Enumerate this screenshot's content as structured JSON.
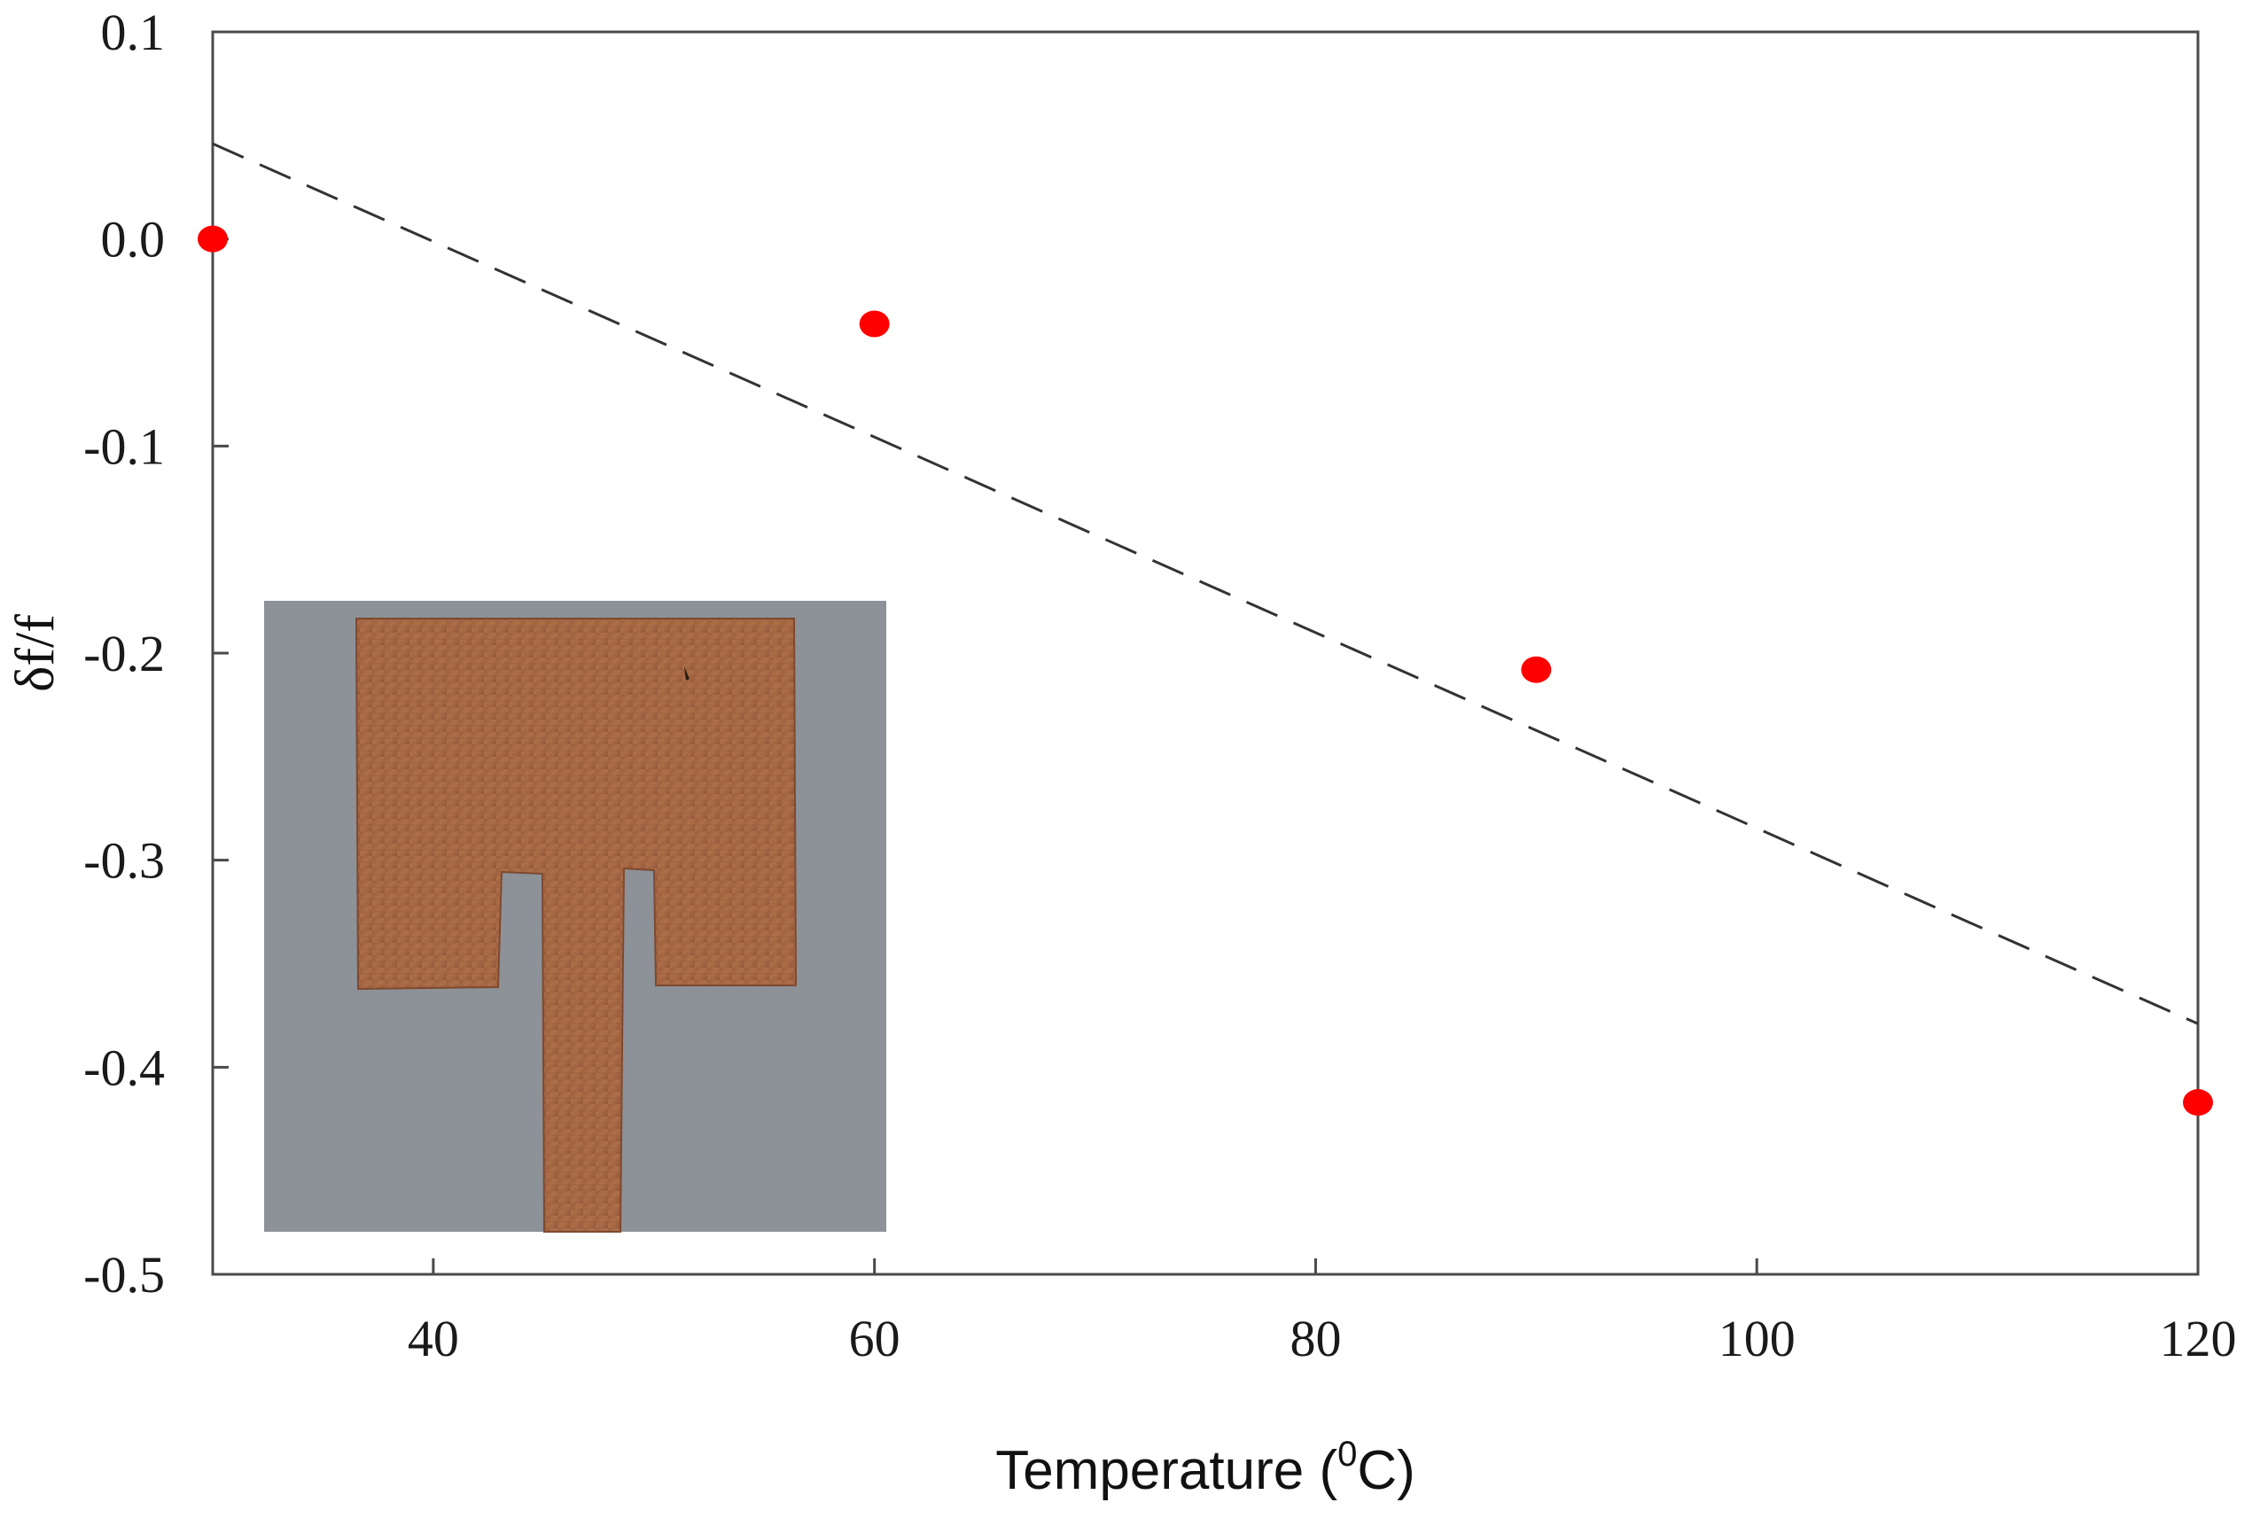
{
  "chart_data": {
    "type": "scatter",
    "xlabel": "Temperature (",
    "xlabel_superscript": "0",
    "xlabel_suffix": "C)",
    "ylabel": "δf/f",
    "xlim": [
      30,
      120
    ],
    "ylim": [
      -0.5,
      0.1
    ],
    "xticks": [
      40,
      60,
      80,
      100,
      120
    ],
    "xtick_labels": [
      "40",
      "60",
      "80",
      "100",
      "120"
    ],
    "yticks": [
      0.1,
      0.0,
      -0.1,
      -0.2,
      -0.3,
      -0.4,
      -0.5
    ],
    "ytick_labels": [
      "0.1",
      "0.0",
      "-0.1",
      "-0.2",
      "-0.3",
      "-0.4",
      "-0.5"
    ],
    "grid": false,
    "series": [
      {
        "type": "scatter",
        "color": "#ff0000",
        "x": [
          30,
          60,
          90,
          120
        ],
        "y": [
          0.0,
          -0.041,
          -0.208,
          -0.417
        ]
      },
      {
        "type": "line",
        "style": "dashed",
        "color": "#333333",
        "x": [
          30,
          120
        ],
        "y": [
          0.046,
          -0.379
        ]
      }
    ],
    "inset_image": {
      "description_icon": "copper-antenna-photo",
      "background_color": "#8d9198",
      "copper_color": "#a3653f"
    }
  }
}
